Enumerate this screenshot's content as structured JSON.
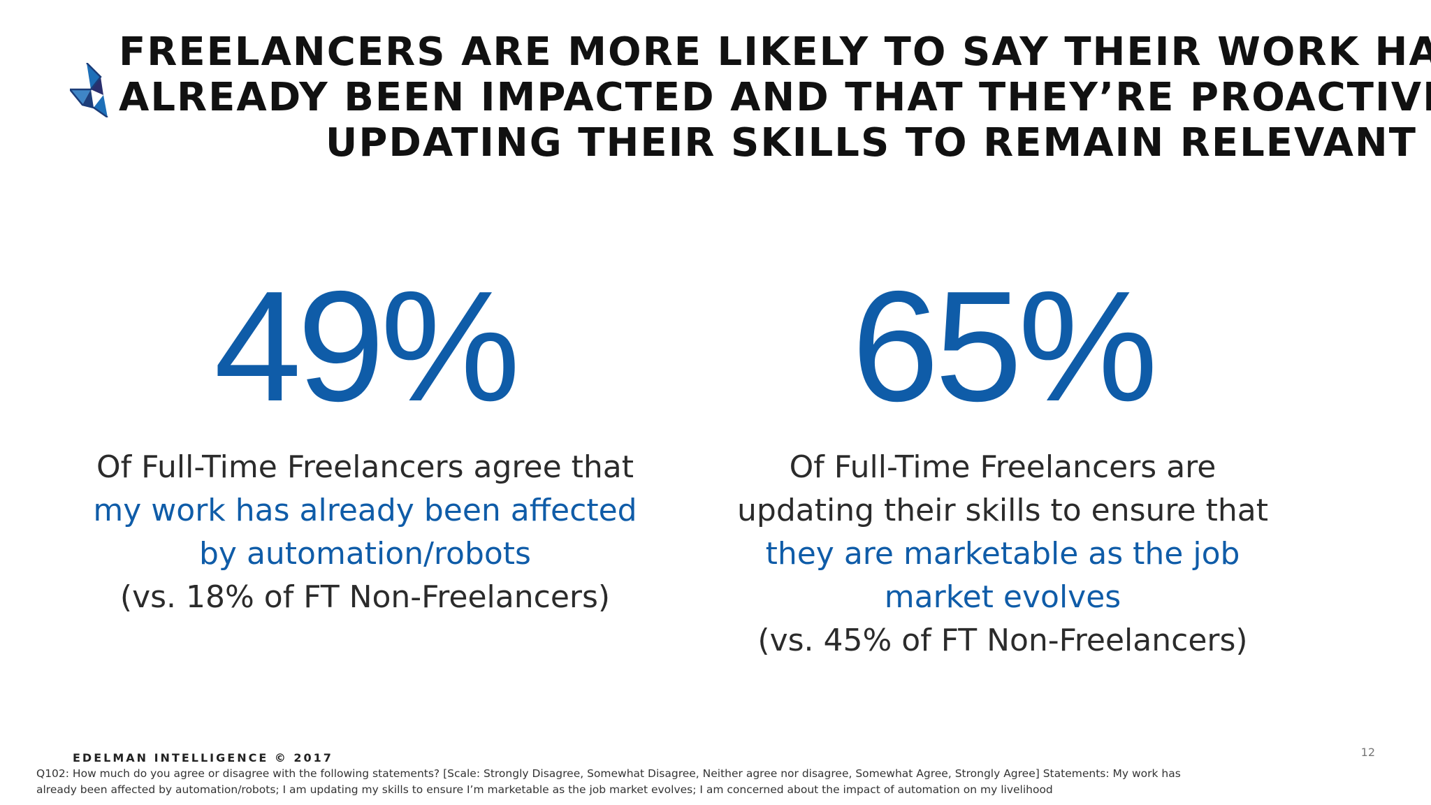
{
  "title": {
    "line1": "FREELANCERS ARE MORE LIKELY TO SAY THEIR WORK HAS",
    "line2": "ALREADY BEEN IMPACTED AND THAT THEY’RE PROACTIVELY",
    "line3": "UPDATING THEIR SKILLS TO REMAIN RELEVANT"
  },
  "logo": {
    "icon": "edelman-triangle-logo-icon"
  },
  "stats": [
    {
      "value": "49%",
      "line1": "Of Full-Time Freelancers agree that",
      "highlight1": "my work has already been affected",
      "highlight2": "by automation/robots",
      "comparison": "(vs. 18% of FT Non-Freelancers)"
    },
    {
      "value": "65%",
      "line1": "Of Full-Time Freelancers are",
      "line2": "updating their skills to ensure that",
      "highlight1": "they are marketable as the job",
      "highlight2": "market evolves",
      "comparison": "(vs. 45% of FT Non-Freelancers)"
    }
  ],
  "footer": {
    "brand": "EDELMAN INTELLIGENCE © 2017",
    "page_number": "12",
    "footnote_line1": "Q102: How much do you agree or disagree with the following statements?  [Scale: Strongly Disagree, Somewhat Disagree, Neither agree nor disagree, Somewhat Agree, Strongly Agree] Statements: My work has",
    "footnote_line2": "already been affected by automation/robots; I am updating my skills to ensure I’m marketable as the job market evolves; I am concerned about the impact of automation on my livelihood"
  },
  "colors": {
    "accent": "#0f5ca8",
    "title_text": "#111111",
    "body_text": "#2b2b2b"
  }
}
